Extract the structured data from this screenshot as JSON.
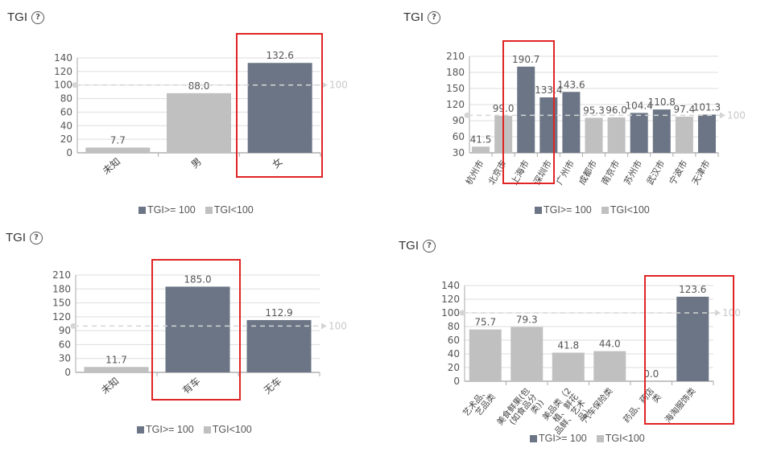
{
  "colors": {
    "high": "#6b7585",
    "low": "#c0c0c0",
    "highlight": "#e02424",
    "avg_line": "#d5d5d5"
  },
  "icons": {
    "help": "question-circle-icon"
  },
  "legend": {
    "high": "TGI>= 100",
    "low": "TGI<100"
  },
  "reference_label": "100",
  "chart_data": [
    {
      "title": "TGI",
      "type": "bar",
      "categories": [
        "未知",
        "男",
        "女"
      ],
      "values": [
        7.7,
        88.0,
        132.6
      ],
      "data_labels": [
        "7.7",
        "88.0",
        "132.6"
      ],
      "yticks": [
        0,
        20,
        40,
        60,
        80,
        100,
        120,
        140
      ],
      "ylim": [
        0,
        140
      ],
      "reference_line": 100,
      "highlight": [
        "女"
      ]
    },
    {
      "title": "TGI",
      "type": "bar",
      "categories": [
        "杭州市",
        "北京市",
        "上海市",
        "深圳市",
        "广州市",
        "成都市",
        "南京市",
        "苏州市",
        "武汉市",
        "宁波市",
        "天津市"
      ],
      "values": [
        41.5,
        99.0,
        190.7,
        133.4,
        143.6,
        95.3,
        96.0,
        104.4,
        110.8,
        97.4,
        101.3
      ],
      "data_labels": [
        "41.5",
        "99.0",
        "190.7",
        "133.4",
        "143.6",
        "95.3",
        "96.0",
        "104.4",
        "110.8",
        "97.4",
        "101.3"
      ],
      "yticks": [
        30,
        60,
        90,
        120,
        150,
        180,
        210
      ],
      "ylim": [
        30,
        210
      ],
      "reference_line": 100,
      "highlight": [
        "上海市",
        "深圳市"
      ]
    },
    {
      "title": "TGI",
      "type": "bar",
      "categories": [
        "未知",
        "有车",
        "无车"
      ],
      "values": [
        11.7,
        185.0,
        112.9
      ],
      "data_labels": [
        "11.7",
        "185.0",
        "112.9"
      ],
      "yticks": [
        0,
        30,
        60,
        90,
        120,
        150,
        180,
        210
      ],
      "ylim": [
        0,
        210
      ],
      "reference_line": 100,
      "highlight": [
        "有车"
      ]
    },
    {
      "title": "TGI",
      "type": "bar",
      "categories": [
        "艺术品、\n艺品类",
        "美食鲜果(包\n(如食品分\n类))",
        "美品类（2\n植、鲜花\n品鲜、艺术\n品）",
        "汽车保险类",
        "药品、药店\n类",
        "海淘服饰类"
      ],
      "values": [
        75.7,
        79.3,
        41.8,
        44.0,
        0.0,
        123.6
      ],
      "data_labels": [
        "75.7",
        "79.3",
        "41.8",
        "44.0",
        "0.0",
        "123.6"
      ],
      "yticks": [
        0,
        20,
        40,
        60,
        80,
        100,
        120,
        140
      ],
      "ylim": [
        0,
        140
      ],
      "reference_line": 100,
      "highlight": [
        "海淘服饰类"
      ]
    }
  ]
}
